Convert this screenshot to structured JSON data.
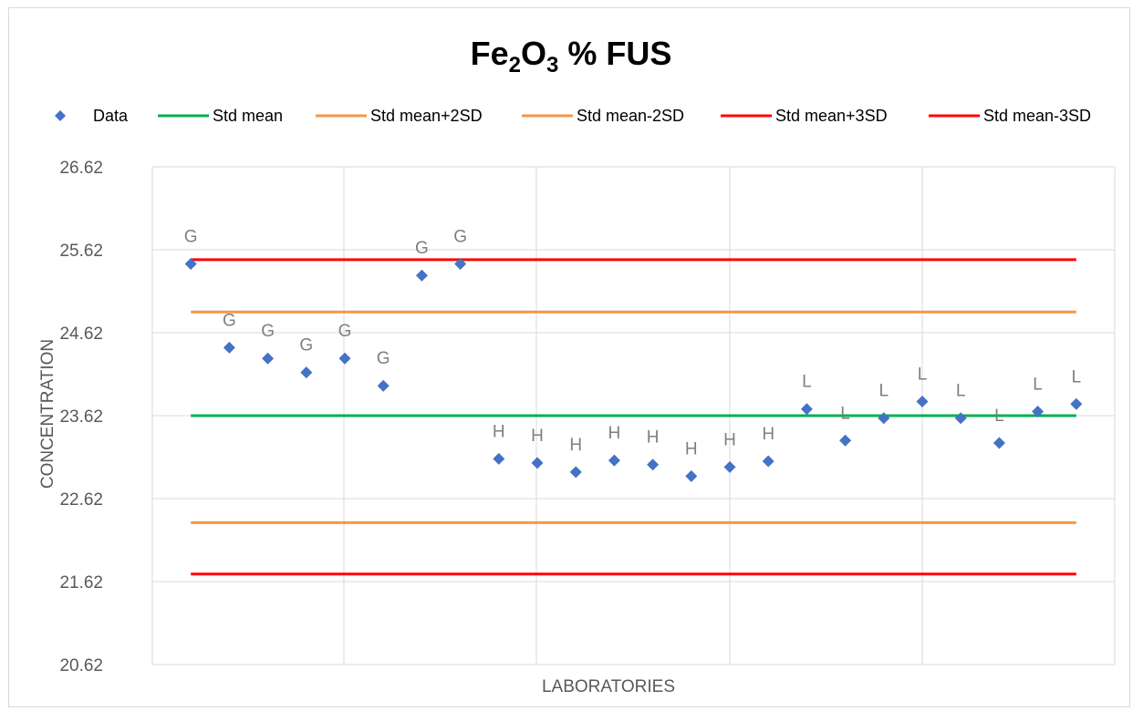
{
  "chart_data": {
    "type": "scatter",
    "title": {
      "main": "Fe",
      "sub1": "2",
      "mid": "O",
      "sub2": "3",
      "rest": " % FUS"
    },
    "xlabel": "LABORATORIES",
    "ylabel": "CONCENTRATION",
    "ylim": [
      20.62,
      26.62
    ],
    "yticks": [
      "20.62",
      "21.62",
      "22.62",
      "23.62",
      "24.62",
      "25.62",
      "26.62"
    ],
    "xlim": [
      0,
      24
    ],
    "grid": true,
    "legend_position": "top",
    "legend": [
      {
        "label": "Data",
        "marker": "diamond",
        "color": "#4472c4"
      },
      {
        "label": "Std mean",
        "marker": "line",
        "color": "#00b050"
      },
      {
        "label": "Std mean+2SD",
        "marker": "line",
        "color": "#f79646"
      },
      {
        "label": "Std mean-2SD",
        "marker": "line",
        "color": "#f79646"
      },
      {
        "label": "Std mean+3SD",
        "marker": "line",
        "color": "#ff0000"
      },
      {
        "label": "Std mean-3SD",
        "marker": "line",
        "color": "#ff0000"
      }
    ],
    "x": [
      1,
      2,
      3,
      4,
      5,
      6,
      7,
      8,
      9,
      10,
      11,
      12,
      13,
      14,
      15,
      16,
      17,
      18,
      19,
      20,
      21,
      22,
      23,
      24
    ],
    "series": [
      {
        "name": "Data",
        "values": [
          25.45,
          24.44,
          24.31,
          24.14,
          24.31,
          23.98,
          25.31,
          25.45,
          23.1,
          23.05,
          22.94,
          23.08,
          23.03,
          22.89,
          23.0,
          23.07,
          23.7,
          23.32,
          23.59,
          23.79,
          23.59,
          23.29,
          23.67,
          23.76
        ],
        "labels": [
          "G",
          "G",
          "G",
          "G",
          "G",
          "G",
          "G",
          "G",
          "H",
          "H",
          "H",
          "H",
          "H",
          "H",
          "H",
          "H",
          "L",
          "L",
          "L",
          "L",
          "L",
          "L",
          "L",
          "L"
        ]
      },
      {
        "name": "Std mean",
        "value": 23.62
      },
      {
        "name": "Std mean+2SD",
        "value": 24.87
      },
      {
        "name": "Std mean-2SD",
        "value": 22.33
      },
      {
        "name": "Std mean+3SD",
        "value": 25.5
      },
      {
        "name": "Std mean-3SD",
        "value": 21.71
      }
    ]
  }
}
